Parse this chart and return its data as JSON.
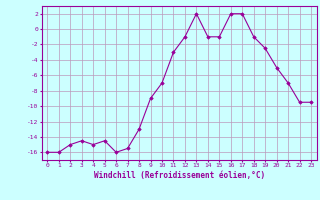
{
  "x": [
    0,
    1,
    2,
    3,
    4,
    5,
    6,
    7,
    8,
    9,
    10,
    11,
    12,
    13,
    14,
    15,
    16,
    17,
    18,
    19,
    20,
    21,
    22,
    23
  ],
  "y": [
    -16,
    -16,
    -15,
    -14.5,
    -15,
    -14.5,
    -16,
    -15.5,
    -13,
    -9,
    -7,
    -3,
    -1,
    2,
    -1,
    -1,
    2,
    2,
    -1,
    -2.5,
    -5,
    -7,
    -9.5,
    -9.5
  ],
  "line_color": "#990099",
  "marker": "D",
  "marker_size": 1.8,
  "background_color": "#ccffff",
  "grid_color": "#bb99bb",
  "xlabel": "Windchill (Refroidissement éolien,°C)",
  "xlabel_fontsize": 5.5,
  "tick_fontsize": 4.5,
  "xlim": [
    -0.5,
    23.5
  ],
  "ylim": [
    -17,
    3
  ],
  "yticks": [
    2,
    0,
    -2,
    -4,
    -6,
    -8,
    -10,
    -12,
    -14,
    -16
  ],
  "xticks": [
    0,
    1,
    2,
    3,
    4,
    5,
    6,
    7,
    8,
    9,
    10,
    11,
    12,
    13,
    14,
    15,
    16,
    17,
    18,
    19,
    20,
    21,
    22,
    23
  ]
}
